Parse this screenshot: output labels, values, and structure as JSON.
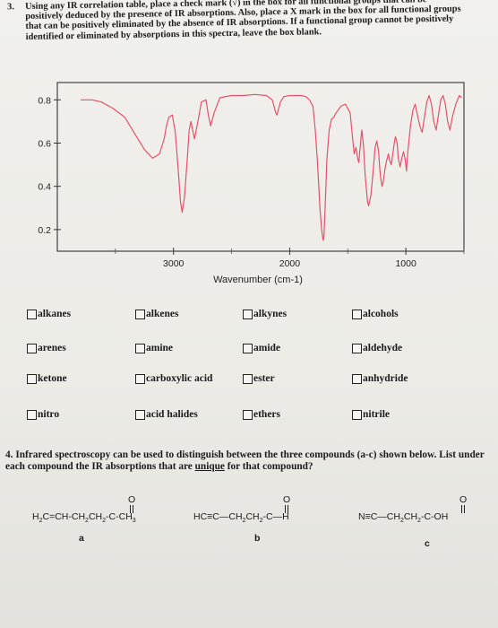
{
  "question3": {
    "number": "3.",
    "text": "Using any IR correlation table, place a check mark (√) in the box for all functional groups that can be positively deduced by the presence of IR absorptions. Also, place a X mark in the box for all functional groups that can be positively eliminated by the absence of IR absorptions. If a functional group cannot be positively identified or eliminated by absorptions in this spectra, leave the box blank."
  },
  "chart_data": {
    "type": "line",
    "title": "",
    "xlabel": "Wavenumber (cm-1)",
    "ylabel": "",
    "x_reversed": true,
    "xlim": [
      4000,
      500
    ],
    "ylim": [
      0.1,
      0.88
    ],
    "x_ticks": [
      3000,
      2000,
      1000
    ],
    "y_ticks": [
      0.8,
      0.6,
      0.4,
      0.2
    ],
    "grid": false,
    "line_color": "#e8506a",
    "series": [
      {
        "x": [
          3800,
          3700,
          3620,
          3520,
          3420,
          3330,
          3250,
          3180,
          3120,
          3080,
          3060,
          3040,
          3010,
          2985,
          2970,
          2955,
          2940,
          2925,
          2905,
          2880,
          2865,
          2850,
          2835,
          2820,
          2790,
          2760,
          2720,
          2700,
          2680,
          2650,
          2600,
          2500,
          2400,
          2300,
          2200,
          2150,
          2120,
          2110,
          2100,
          2080,
          2050,
          2000,
          1960,
          1940,
          1900,
          1860,
          1830,
          1800,
          1780,
          1760,
          1740,
          1725,
          1715,
          1710,
          1705,
          1695,
          1680,
          1660,
          1640,
          1620,
          1600,
          1560,
          1520,
          1480,
          1460,
          1445,
          1430,
          1415,
          1405,
          1395,
          1380,
          1365,
          1350,
          1330,
          1320,
          1300,
          1280,
          1265,
          1250,
          1235,
          1225,
          1215,
          1205,
          1195,
          1180,
          1165,
          1150,
          1140,
          1125,
          1115,
          1100,
          1090,
          1075,
          1065,
          1050,
          1035,
          1020,
          1005,
          995,
          985,
          960,
          940,
          920,
          900,
          880,
          860,
          840,
          820,
          800,
          780,
          760,
          740,
          720,
          700,
          680,
          660,
          640,
          620,
          600,
          570,
          540,
          520
        ],
        "y": [
          0.8,
          0.8,
          0.79,
          0.76,
          0.72,
          0.64,
          0.57,
          0.53,
          0.55,
          0.62,
          0.68,
          0.72,
          0.73,
          0.65,
          0.55,
          0.44,
          0.33,
          0.28,
          0.35,
          0.54,
          0.66,
          0.7,
          0.66,
          0.62,
          0.7,
          0.79,
          0.8,
          0.73,
          0.68,
          0.74,
          0.81,
          0.82,
          0.82,
          0.825,
          0.82,
          0.8,
          0.74,
          0.73,
          0.75,
          0.79,
          0.815,
          0.82,
          0.82,
          0.82,
          0.82,
          0.815,
          0.8,
          0.77,
          0.66,
          0.5,
          0.3,
          0.2,
          0.16,
          0.15,
          0.17,
          0.3,
          0.52,
          0.66,
          0.71,
          0.72,
          0.74,
          0.77,
          0.78,
          0.74,
          0.63,
          0.55,
          0.58,
          0.53,
          0.51,
          0.57,
          0.66,
          0.59,
          0.45,
          0.33,
          0.31,
          0.36,
          0.48,
          0.58,
          0.61,
          0.56,
          0.48,
          0.43,
          0.4,
          0.42,
          0.48,
          0.52,
          0.55,
          0.52,
          0.5,
          0.54,
          0.6,
          0.63,
          0.6,
          0.53,
          0.49,
          0.53,
          0.56,
          0.52,
          0.47,
          0.55,
          0.68,
          0.75,
          0.78,
          0.73,
          0.68,
          0.65,
          0.72,
          0.79,
          0.82,
          0.78,
          0.7,
          0.66,
          0.73,
          0.8,
          0.82,
          0.78,
          0.7,
          0.66,
          0.72,
          0.78,
          0.82,
          0.81
        ]
      }
    ]
  },
  "checkboxes": [
    {
      "label": "alkanes"
    },
    {
      "label": "alkenes"
    },
    {
      "label": "alkynes"
    },
    {
      "label": "alcohols"
    },
    {
      "label": "arenes"
    },
    {
      "label": "amine"
    },
    {
      "label": "amide"
    },
    {
      "label": "aldehyde"
    },
    {
      "label": "ketone"
    },
    {
      "label": "carboxylic acid"
    },
    {
      "label": "ester"
    },
    {
      "label": "anhydride"
    },
    {
      "label": "nitro"
    },
    {
      "label": "acid halides"
    },
    {
      "label": "ethers"
    },
    {
      "label": "nitrile"
    }
  ],
  "question4": {
    "number": "4.",
    "text_before": "Infrared spectroscopy can be used to distinguish between the three compounds (a-c) shown below. List under each compound the IR absorptions that are ",
    "emphasis": "unique",
    "text_after": " for that compound?"
  },
  "compounds": {
    "a": {
      "label": "a",
      "formula_html": "H<sub>2</sub>C=CH-CH<sub>2</sub>CH<sub>2</sub>-C-CH<sub>3</sub>",
      "carbonyl_o": "O"
    },
    "b": {
      "label": "b",
      "formula_html": "HC≡C—CH<sub>2</sub>CH<sub>2</sub>-C—H",
      "carbonyl_o": "O"
    },
    "c": {
      "label": "c",
      "formula_html": "N≡C—CH<sub>2</sub>CH<sub>2</sub>-C-OH",
      "carbonyl_o": "O"
    }
  }
}
